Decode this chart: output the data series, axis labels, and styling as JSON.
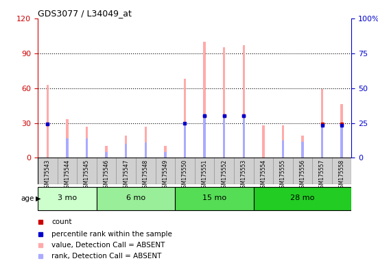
{
  "title": "GDS3077 / L34049_at",
  "samples": [
    "GSM175543",
    "GSM175544",
    "GSM175545",
    "GSM175546",
    "GSM175547",
    "GSM175548",
    "GSM175549",
    "GSM175550",
    "GSM175551",
    "GSM175552",
    "GSM175553",
    "GSM175554",
    "GSM175555",
    "GSM175556",
    "GSM175557",
    "GSM175558"
  ],
  "pink_bars": [
    63,
    33,
    27,
    10,
    19,
    27,
    10,
    68,
    100,
    95,
    97,
    28,
    28,
    19,
    59,
    46
  ],
  "blue_bars": [
    0,
    17,
    17,
    5,
    12,
    13,
    5,
    30,
    38,
    36,
    36,
    0,
    15,
    14,
    28,
    28
  ],
  "red_vals": [
    29,
    0,
    0,
    0,
    0,
    0,
    0,
    0,
    36,
    36,
    36,
    0,
    0,
    0,
    29,
    29
  ],
  "dblue_vals": [
    29,
    0,
    0,
    0,
    0,
    0,
    0,
    30,
    36,
    36,
    36,
    0,
    0,
    0,
    28,
    28
  ],
  "age_groups": [
    {
      "label": "3 mo",
      "start": 0,
      "end": 3,
      "color": "#ccffcc"
    },
    {
      "label": "6 mo",
      "start": 3,
      "end": 7,
      "color": "#aaffaa"
    },
    {
      "label": "15 mo",
      "start": 7,
      "end": 11,
      "color": "#55ee55"
    },
    {
      "label": "28 mo",
      "start": 11,
      "end": 16,
      "color": "#33dd33"
    }
  ],
  "ylim_left": [
    0,
    120
  ],
  "ylim_right": [
    0,
    100
  ],
  "yticks_left": [
    0,
    30,
    60,
    90,
    120
  ],
  "yticks_right": [
    0,
    25,
    50,
    75,
    100
  ],
  "ytick_labels_right": [
    "0",
    "25",
    "50",
    "75",
    "100%"
  ],
  "left_axis_color": "#cc0000",
  "right_axis_color": "#0000cc",
  "bar_width": 0.12,
  "pink_color": "#ffaaaa",
  "blue_color": "#aaaaff",
  "red_color": "#cc0000",
  "dark_blue_color": "#0000cc",
  "bg_color": "#ffffff",
  "grid_color": "#000000",
  "legend_items": [
    {
      "color": "#cc0000",
      "label": "count"
    },
    {
      "color": "#0000cc",
      "label": "percentile rank within the sample"
    },
    {
      "color": "#ffaaaa",
      "label": "value, Detection Call = ABSENT"
    },
    {
      "color": "#aaaaff",
      "label": "rank, Detection Call = ABSENT"
    }
  ]
}
